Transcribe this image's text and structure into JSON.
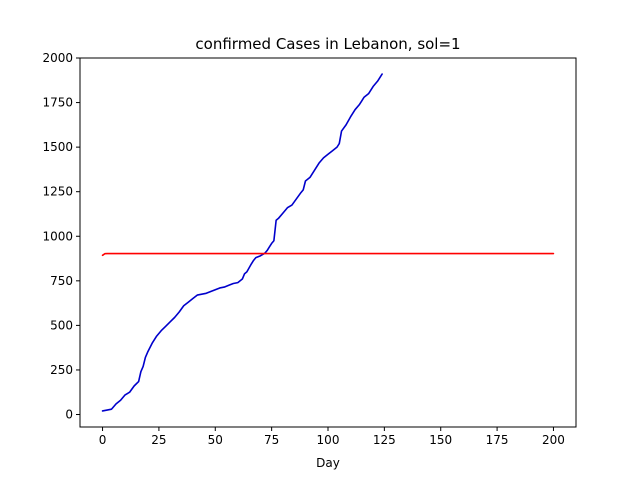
{
  "chart_data": {
    "type": "line",
    "title": "confirmed Cases in Lebanon, sol=1",
    "xlabel": "Day",
    "ylabel": "",
    "xlim": [
      -10,
      210
    ],
    "ylim": [
      -70,
      2000
    ],
    "xticks": [
      0,
      25,
      50,
      75,
      100,
      125,
      150,
      175,
      200
    ],
    "yticks": [
      0,
      250,
      500,
      750,
      1000,
      1250,
      1500,
      1750,
      2000
    ],
    "grid": false,
    "legend": "none",
    "series": [
      {
        "color": "#0000cc",
        "x": [
          0,
          2,
          4,
          5,
          6,
          8,
          10,
          12,
          14,
          16,
          17,
          18,
          19,
          20,
          22,
          24,
          26,
          28,
          30,
          32,
          34,
          36,
          38,
          40,
          42,
          44,
          46,
          48,
          50,
          52,
          54,
          56,
          58,
          60,
          62,
          63,
          64,
          66,
          67,
          68,
          70,
          72,
          73,
          74,
          75,
          76,
          77,
          78,
          80,
          82,
          84,
          86,
          88,
          89,
          90,
          92,
          94,
          96,
          98,
          100,
          102,
          104,
          105,
          106,
          108,
          110,
          112,
          114,
          115,
          116,
          118,
          120,
          122,
          124
        ],
        "y": [
          20,
          25,
          30,
          45,
          60,
          80,
          110,
          125,
          160,
          185,
          240,
          270,
          320,
          350,
          400,
          440,
          470,
          495,
          520,
          545,
          575,
          610,
          630,
          650,
          670,
          675,
          680,
          690,
          700,
          710,
          715,
          725,
          735,
          740,
          760,
          790,
          800,
          845,
          865,
          880,
          890,
          905,
          920,
          940,
          960,
          975,
          1090,
          1100,
          1130,
          1160,
          1175,
          1210,
          1245,
          1260,
          1310,
          1330,
          1370,
          1410,
          1440,
          1460,
          1480,
          1500,
          1520,
          1590,
          1625,
          1670,
          1710,
          1740,
          1760,
          1780,
          1800,
          1840,
          1870,
          1910
        ]
      },
      {
        "color": "#ff0000",
        "x": [
          0,
          1,
          2,
          25,
          50,
          75,
          100,
          125,
          150,
          175,
          200
        ],
        "y": [
          893,
          902,
          903,
          903,
          903,
          903,
          903,
          903,
          903,
          903,
          903
        ]
      }
    ]
  }
}
